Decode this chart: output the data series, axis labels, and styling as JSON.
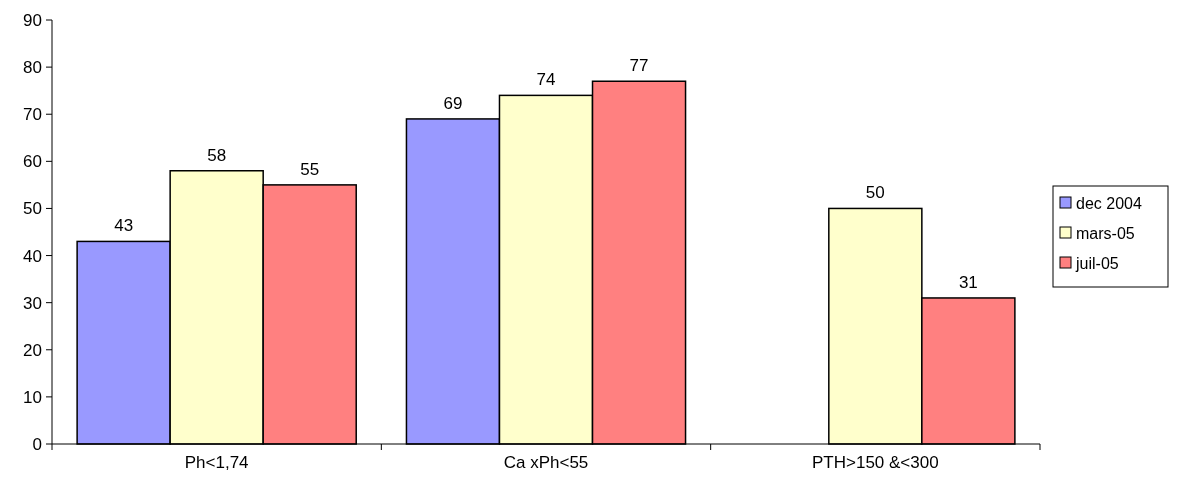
{
  "chart_data": {
    "type": "bar",
    "categories": [
      "Ph<1,74",
      "Ca xPh<55",
      "PTH>150 &<300"
    ],
    "series": [
      {
        "name": "dec 2004",
        "color": "#9999ff",
        "values": [
          43,
          69,
          null
        ]
      },
      {
        "name": "mars-05",
        "color": "#ffffcc",
        "values": [
          58,
          74,
          50
        ]
      },
      {
        "name": "juil-05",
        "color": "#ff8080",
        "values": [
          55,
          77,
          31
        ]
      }
    ],
    "ylim": [
      0,
      90
    ],
    "yticks": [
      0,
      10,
      20,
      30,
      40,
      50,
      60,
      70,
      80,
      90
    ],
    "grid": false,
    "legend": "right",
    "data_labels": true
  }
}
